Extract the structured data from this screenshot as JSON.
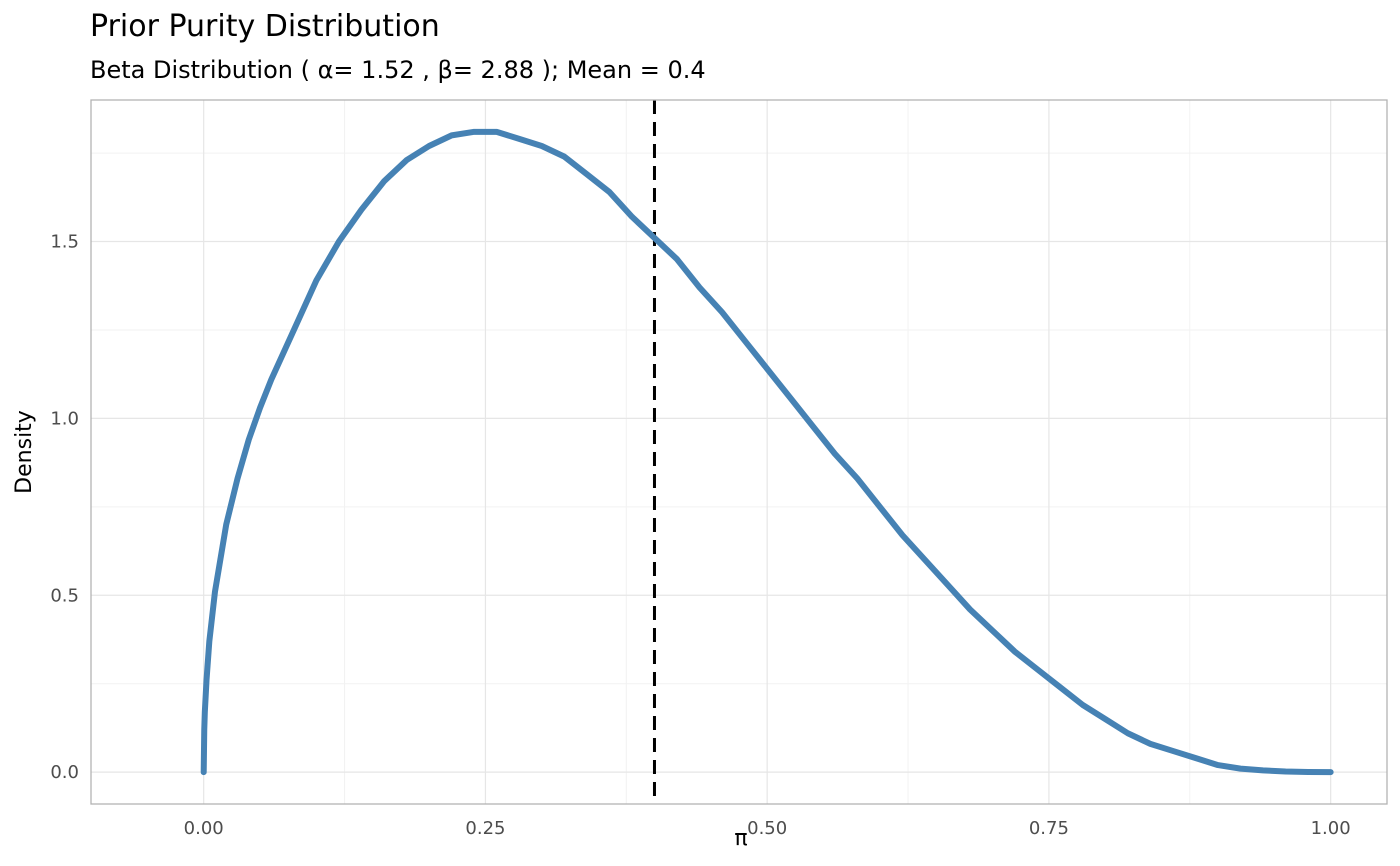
{
  "chart_data": {
    "type": "line",
    "title": "Prior Purity Distribution",
    "subtitle": "Beta Distribution ( α= 1.52 ,  β= 2.88 ); Mean =  0.4",
    "xlabel": "π",
    "ylabel": "Density",
    "xlim": [
      -0.1,
      1.05
    ],
    "ylim": [
      -0.09,
      1.9
    ],
    "x_ticks": [
      0,
      0.25,
      0.5,
      0.75,
      1
    ],
    "x_tick_labels": [
      "0.00",
      "0.25",
      "0.50",
      "0.75",
      "1.00"
    ],
    "y_ticks": [
      0,
      0.5,
      1,
      1.5
    ],
    "y_tick_labels": [
      "0.0",
      "0.5",
      "1.0",
      "1.5"
    ],
    "grid": true,
    "series": [
      {
        "color": "#4682B4",
        "x": [
          0,
          0.0005,
          0.001,
          0.0025,
          0.005,
          0.01,
          0.02,
          0.03,
          0.04,
          0.05,
          0.06,
          0.08,
          0.1,
          0.12,
          0.14,
          0.16,
          0.18,
          0.2,
          0.22,
          0.24,
          0.26,
          0.28,
          0.3,
          0.32,
          0.34,
          0.36,
          0.38,
          0.4,
          0.42,
          0.44,
          0.46,
          0.48,
          0.5,
          0.52,
          0.54,
          0.56,
          0.58,
          0.6,
          0.62,
          0.64,
          0.66,
          0.68,
          0.7,
          0.72,
          0.74,
          0.76,
          0.78,
          0.8,
          0.82,
          0.84,
          0.86,
          0.88,
          0.9,
          0.92,
          0.94,
          0.96,
          0.98,
          1
        ],
        "y": [
          0,
          0.12,
          0.17,
          0.26,
          0.37,
          0.51,
          0.7,
          0.83,
          0.94,
          1.03,
          1.11,
          1.25,
          1.39,
          1.5,
          1.59,
          1.67,
          1.73,
          1.77,
          1.8,
          1.81,
          1.81,
          1.79,
          1.77,
          1.74,
          1.69,
          1.64,
          1.57,
          1.51,
          1.45,
          1.37,
          1.3,
          1.22,
          1.14,
          1.06,
          0.98,
          0.9,
          0.83,
          0.75,
          0.67,
          0.6,
          0.53,
          0.46,
          0.4,
          0.34,
          0.29,
          0.24,
          0.19,
          0.15,
          0.11,
          0.08,
          0.06,
          0.04,
          0.02,
          0.01,
          0.005,
          0.002,
          0.0005,
          0
        ]
      }
    ],
    "reference_line": {
      "x": 0.4,
      "style": "dashed",
      "color": "#000000"
    }
  }
}
